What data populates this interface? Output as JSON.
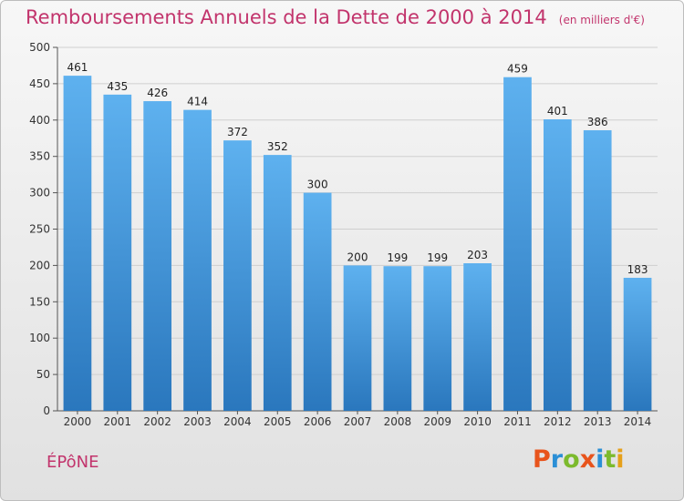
{
  "chart_data": {
    "type": "bar",
    "title": "Remboursements Annuels de la Dette de 2000 à 2014",
    "subtitle": "(en milliers d'€)",
    "xlabel": "",
    "ylabel": "",
    "categories": [
      "2000",
      "2001",
      "2002",
      "2003",
      "2004",
      "2005",
      "2006",
      "2007",
      "2008",
      "2009",
      "2010",
      "2011",
      "2012",
      "2013",
      "2014"
    ],
    "values": [
      461,
      435,
      426,
      414,
      372,
      352,
      300,
      200,
      199,
      199,
      203,
      459,
      401,
      386,
      183
    ],
    "ylim": [
      0,
      500
    ],
    "yticks": [
      0,
      50,
      100,
      150,
      200,
      250,
      300,
      350,
      400,
      450,
      500
    ],
    "grid": true,
    "bar_color": "#3d8fd8"
  },
  "commune": "ÉPôNE",
  "logo": {
    "text": "Proxiti",
    "colors": [
      "#e8541c",
      "#2b8fd6",
      "#7cba2d",
      "#e8541c",
      "#2b8fd6",
      "#7cba2d",
      "#e6a01a"
    ]
  },
  "colors": {
    "title": "#c2346c",
    "grid": "#cfcfcf"
  }
}
